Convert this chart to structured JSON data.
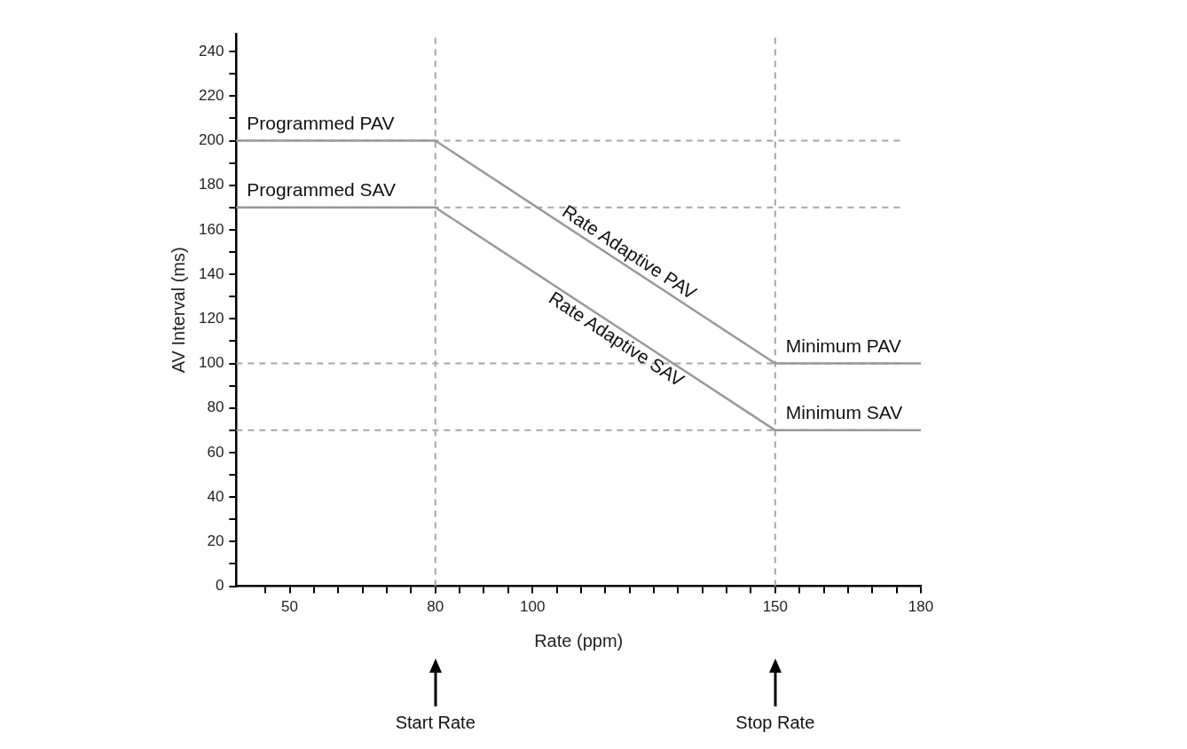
{
  "chart_data": {
    "type": "line",
    "xlabel": "Rate (ppm)",
    "ylabel": "AV Interval (ms)",
    "xlim": [
      39,
      180
    ],
    "xticks": [
      {
        "value": 45,
        "label": null
      },
      50,
      {
        "value": 55,
        "label": null
      },
      {
        "value": 60,
        "label": null
      },
      {
        "value": 65,
        "label": null
      },
      {
        "value": 70,
        "label": null
      },
      {
        "value": 75,
        "label": null
      },
      80,
      {
        "value": 85,
        "label": null
      },
      {
        "value": 90,
        "label": null
      },
      {
        "value": 95,
        "label": null
      },
      100,
      {
        "value": 105,
        "label": null
      },
      {
        "value": 110,
        "label": null
      },
      {
        "value": 115,
        "label": null
      },
      {
        "value": 120,
        "label": null
      },
      {
        "value": 125,
        "label": null
      },
      {
        "value": 130,
        "label": null
      },
      {
        "value": 135,
        "label": null
      },
      {
        "value": 140,
        "label": null
      },
      {
        "value": 145,
        "label": null
      },
      150,
      {
        "value": 155,
        "label": null
      },
      {
        "value": 160,
        "label": null
      },
      {
        "value": 165,
        "label": null
      },
      {
        "value": 170,
        "label": null
      },
      {
        "value": 175,
        "label": null
      },
      180
    ],
    "ylim": [
      0,
      248
    ],
    "yticks": [
      0,
      {
        "value": 10,
        "label": null
      },
      20,
      {
        "value": 30,
        "label": null
      },
      40,
      {
        "value": 50,
        "label": null
      },
      60,
      {
        "value": 70,
        "label": null
      },
      80,
      {
        "value": 90,
        "label": null
      },
      100,
      {
        "value": 110,
        "label": null
      },
      120,
      {
        "value": 130,
        "label": null
      },
      140,
      {
        "value": 150,
        "label": null
      },
      160,
      {
        "value": 170,
        "label": null
      },
      180,
      {
        "value": 190,
        "label": null
      },
      200,
      {
        "value": 210,
        "label": null
      },
      220,
      {
        "value": 230,
        "label": null
      },
      240
    ],
    "grid": false,
    "legend": false,
    "line_style": "solid",
    "series": [
      {
        "name": "Programmed PAV",
        "color": "#999999",
        "x": [
          39,
          80
        ],
        "values": [
          200,
          200
        ]
      },
      {
        "name": "Rate Adaptive PAV",
        "color": "#999999",
        "x": [
          80,
          150
        ],
        "values": [
          200,
          100
        ]
      },
      {
        "name": "Minimum PAV",
        "color": "#999999",
        "x": [
          150,
          180
        ],
        "values": [
          100,
          100
        ]
      },
      {
        "name": "Programmed SAV",
        "color": "#999999",
        "x": [
          39,
          80
        ],
        "values": [
          170,
          170
        ]
      },
      {
        "name": "Rate Adaptive SAV",
        "color": "#999999",
        "x": [
          80,
          150
        ],
        "values": [
          170,
          70
        ]
      },
      {
        "name": "Minimum SAV",
        "color": "#999999",
        "x": [
          150,
          180
        ],
        "values": [
          70,
          70
        ]
      }
    ],
    "ref_lines": [
      {
        "axis": "x",
        "value": 80,
        "label": null,
        "color": "#a6a6a6",
        "line_style": "dashed"
      },
      {
        "axis": "x",
        "value": 150,
        "label": null,
        "color": "#a6a6a6",
        "line_style": "dashed"
      },
      {
        "axis": "y",
        "value": 200,
        "label": null,
        "color": "#a6a6a6",
        "line_style": "dashed"
      },
      {
        "axis": "y",
        "value": 170,
        "label": null,
        "color": "#a6a6a6",
        "line_style": "dashed"
      },
      {
        "axis": "y",
        "value": 100,
        "label": null,
        "color": "#a6a6a6",
        "line_style": "dashed"
      },
      {
        "axis": "y",
        "value": 70,
        "label": null,
        "color": "#a6a6a6",
        "line_style": "dashed"
      }
    ],
    "annotations": [
      "Start Rate",
      "Stop Rate"
    ]
  }
}
